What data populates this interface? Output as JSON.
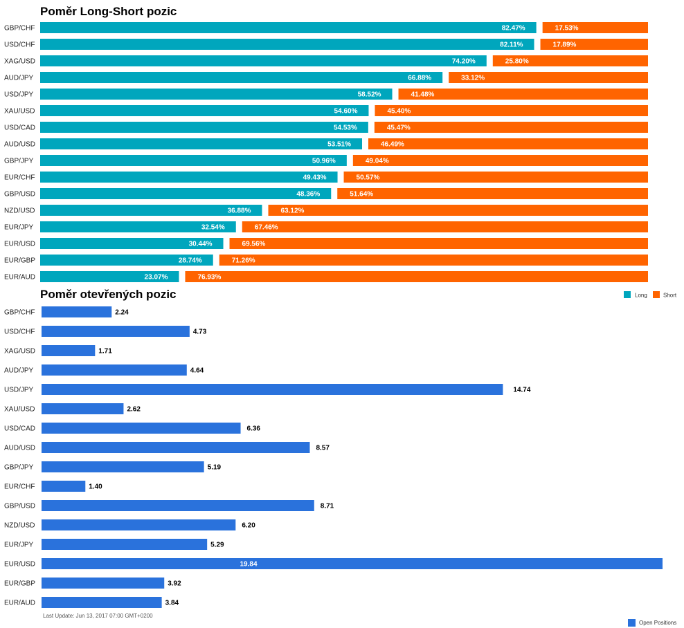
{
  "colors": {
    "long": "#00a6bd",
    "short": "#ff6400",
    "open": "#2a72dc"
  },
  "chart_data": [
    {
      "type": "bar",
      "stacked": true,
      "orientation": "horizontal",
      "title": "Poměr Long-Short pozic",
      "categories": [
        "GBP/CHF",
        "USD/CHF",
        "XAG/USD",
        "AUD/JPY",
        "USD/JPY",
        "XAU/USD",
        "USD/CAD",
        "AUD/USD",
        "GBP/JPY",
        "EUR/CHF",
        "GBP/USD",
        "NZD/USD",
        "EUR/JPY",
        "EUR/USD",
        "EUR/GBP",
        "EUR/AUD"
      ],
      "series": [
        {
          "name": "Long",
          "values": [
            82.47,
            82.11,
            74.2,
            66.88,
            58.52,
            54.6,
            54.53,
            53.51,
            50.96,
            49.43,
            48.36,
            36.88,
            32.54,
            30.44,
            28.74,
            23.07
          ],
          "labels": [
            "82.47%",
            "82.11%",
            "74.20%",
            "66.88%",
            "58.52%",
            "54.60%",
            "54.53%",
            "53.51%",
            "50.96%",
            "49.43%",
            "48.36%",
            "36.88%",
            "32.54%",
            "30.44%",
            "28.74%",
            "23.07%"
          ]
        },
        {
          "name": "Short",
          "values": [
            17.53,
            17.89,
            25.8,
            33.12,
            41.48,
            45.4,
            45.47,
            46.49,
            49.04,
            50.57,
            51.64,
            63.12,
            67.46,
            69.56,
            71.26,
            76.93
          ],
          "labels": [
            "17.53%",
            "17.89%",
            "25.80%",
            "33.12%",
            "41.48%",
            "45.40%",
            "45.47%",
            "46.49%",
            "49.04%",
            "50.57%",
            "51.64%",
            "63.12%",
            "67.46%",
            "69.56%",
            "71.26%",
            "76.93%"
          ]
        }
      ],
      "xlim": [
        0,
        100
      ],
      "legend": "top-right"
    },
    {
      "type": "bar",
      "orientation": "horizontal",
      "title": "Poměr otevřených pozic",
      "categories": [
        "GBP/CHF",
        "USD/CHF",
        "XAG/USD",
        "AUD/JPY",
        "USD/JPY",
        "XAU/USD",
        "USD/CAD",
        "AUD/USD",
        "GBP/JPY",
        "EUR/CHF",
        "GBP/USD",
        "NZD/USD",
        "EUR/JPY",
        "EUR/USD",
        "EUR/GBP",
        "EUR/AUD"
      ],
      "series": [
        {
          "name": "Open Positions",
          "values": [
            2.24,
            4.73,
            1.71,
            4.64,
            14.74,
            2.62,
            6.36,
            8.57,
            5.19,
            1.4,
            8.71,
            6.2,
            5.29,
            19.84,
            3.92,
            3.84
          ],
          "labels": [
            "2.24",
            "4.73",
            "1.71",
            "4.64",
            "14.74",
            "2.62",
            "6.36",
            "8.57",
            "5.19",
            "1.40",
            "8.71",
            "6.20",
            "5.29",
            "19.84",
            "3.92",
            "3.84"
          ]
        }
      ],
      "xlim": [
        0,
        19.84
      ],
      "legend": "bottom-right",
      "footer": "Last Update: Jun 13, 2017 07:00 GMT+0200"
    }
  ]
}
